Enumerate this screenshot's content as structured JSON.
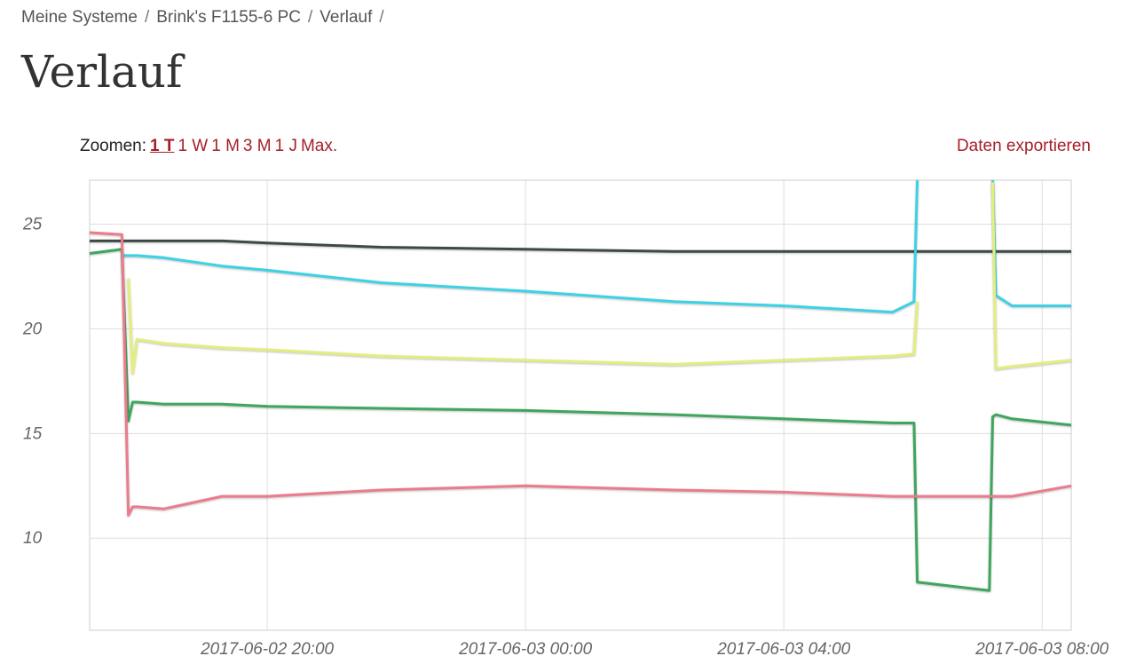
{
  "breadcrumb": {
    "items": [
      "Meine Systeme",
      "Brink's F1155-6 PC",
      "Verlauf"
    ],
    "separator": "/"
  },
  "title": "Verlauf",
  "zoom": {
    "label": "Zoomen:",
    "options": [
      "1 T",
      "1 W",
      "1 M",
      "3 M",
      "1 J",
      "Max."
    ],
    "selected": 0
  },
  "export": "Daten exportieren",
  "chart_data": {
    "type": "line",
    "x": [
      "2017-06-02 17:15",
      "2017-06-02 17:45",
      "2017-06-02 17:51",
      "2017-06-02 17:55",
      "2017-06-02 17:59",
      "2017-06-02 18:24",
      "2017-06-02 19:18",
      "2017-06-02 20:00",
      "2017-06-02 21:46",
      "2017-06-03 00:00",
      "2017-06-03 02:18",
      "2017-06-03 04:00",
      "2017-06-03 05:41",
      "2017-06-03 06:01",
      "2017-06-03 06:04",
      "2017-06-03 07:11",
      "2017-06-03 07:14",
      "2017-06-03 07:17",
      "2017-06-03 07:32",
      "2017-06-03 08:27"
    ],
    "xlim": [
      "2017-06-02 17:15",
      "2017-06-03 08:27"
    ],
    "xticks": [
      "2017-06-02 20:00",
      "2017-06-03 00:00",
      "2017-06-03 04:00",
      "2017-06-03 08:00"
    ],
    "ylim": [
      5.6,
      27.1
    ],
    "yticks": [
      10,
      15,
      20,
      25
    ],
    "grid": true,
    "series": [
      {
        "color": "#3d4a45",
        "values": [
          24.2,
          24.2,
          24.2,
          24.2,
          24.2,
          24.2,
          24.2,
          24.1,
          23.9,
          23.8,
          23.7,
          23.7,
          23.7,
          23.7,
          23.7,
          23.7,
          23.7,
          23.7,
          23.7,
          23.7
        ]
      },
      {
        "color": "#3cd2e6",
        "values": [
          null,
          23.5,
          23.5,
          23.5,
          23.5,
          23.4,
          23.0,
          22.8,
          22.2,
          21.8,
          21.3,
          21.1,
          20.8,
          21.3,
          27.1,
          null,
          27.1,
          21.6,
          21.1,
          21.1
        ]
      },
      {
        "color": "#e3ef7a",
        "values": [
          null,
          null,
          22.4,
          17.9,
          19.5,
          19.3,
          19.1,
          19.0,
          18.7,
          18.5,
          18.3,
          18.5,
          18.7,
          18.8,
          21.3,
          null,
          27.0,
          18.1,
          18.2,
          18.5
        ]
      },
      {
        "color": "#3fa55f",
        "values": [
          23.6,
          23.8,
          15.6,
          16.5,
          16.5,
          16.4,
          16.4,
          16.3,
          16.2,
          16.1,
          15.9,
          15.7,
          15.5,
          15.5,
          7.9,
          7.5,
          15.8,
          15.9,
          15.7,
          15.4
        ]
      },
      {
        "color": "#ec7b8c",
        "values": [
          24.6,
          24.5,
          11.1,
          11.5,
          11.5,
          11.4,
          12.0,
          12.0,
          12.3,
          12.5,
          12.3,
          12.2,
          12.0,
          12.0,
          12.0,
          12.0,
          12.0,
          12.0,
          12.0,
          12.5
        ]
      }
    ]
  }
}
